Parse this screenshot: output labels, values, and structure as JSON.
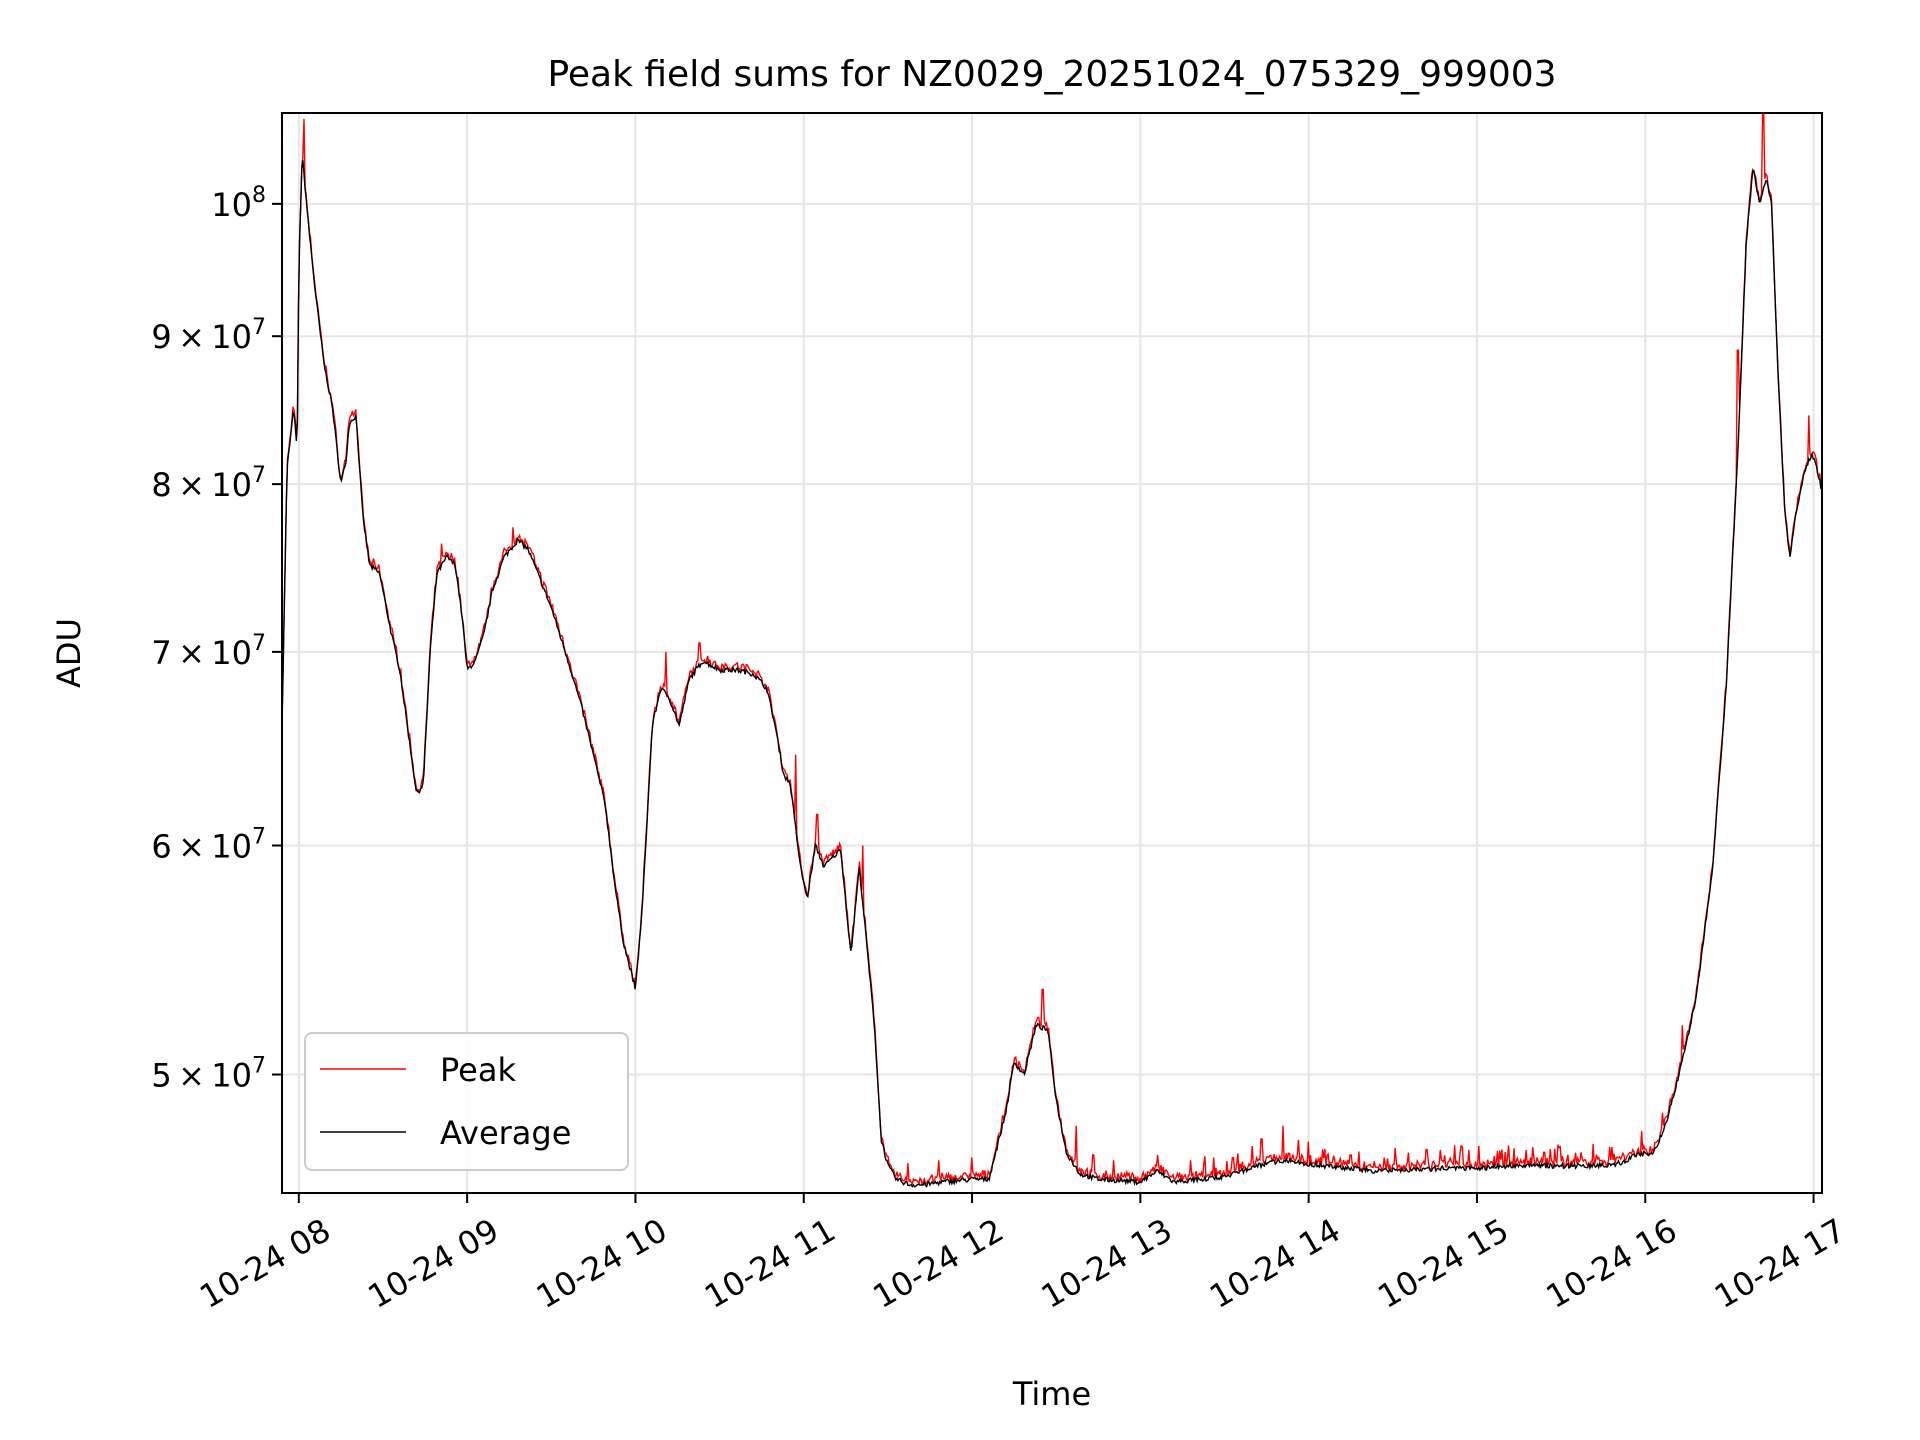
{
  "chart_data": {
    "type": "line",
    "title": "Peak field sums for NZ0029_20251024_075329_999003",
    "xlabel": "Time",
    "ylabel": "ADU",
    "yscale": "log",
    "xlim": [
      7.9,
      17.05
    ],
    "ylim": [
      45500000,
      107500000
    ],
    "grid": true,
    "legend_position": "lower-left",
    "x_ticks": [
      {
        "value": 8,
        "label": "10-24 08"
      },
      {
        "value": 9,
        "label": "10-24 09"
      },
      {
        "value": 10,
        "label": "10-24 10"
      },
      {
        "value": 11,
        "label": "10-24 11"
      },
      {
        "value": 12,
        "label": "10-24 12"
      },
      {
        "value": 13,
        "label": "10-24 13"
      },
      {
        "value": 14,
        "label": "10-24 14"
      },
      {
        "value": 15,
        "label": "10-24 15"
      },
      {
        "value": 16,
        "label": "10-24 16"
      },
      {
        "value": 17,
        "label": "10-24 17"
      }
    ],
    "y_ticks": [
      {
        "value": 50000000,
        "coef": "5",
        "exp": "7"
      },
      {
        "value": 60000000,
        "coef": "6",
        "exp": "7"
      },
      {
        "value": 70000000,
        "coef": "7",
        "exp": "7"
      },
      {
        "value": 80000000,
        "coef": "8",
        "exp": "7"
      },
      {
        "value": 90000000,
        "coef": "9",
        "exp": "7"
      },
      {
        "value": 100000000,
        "coef": "10",
        "exp": "8"
      }
    ],
    "y_times_symbol": "×",
    "series": [
      {
        "name": "Peak",
        "color": "#ff0000"
      },
      {
        "name": "Average",
        "color": "#000000"
      }
    ],
    "average_keypoints": [
      [
        7.9,
        66000000
      ],
      [
        7.93,
        81000000
      ],
      [
        7.97,
        85000000
      ],
      [
        7.99,
        82000000
      ],
      [
        8.0,
        95000000
      ],
      [
        8.02,
        104000000
      ],
      [
        8.06,
        98000000
      ],
      [
        8.1,
        93000000
      ],
      [
        8.15,
        88000000
      ],
      [
        8.2,
        85000000
      ],
      [
        8.25,
        80000000
      ],
      [
        8.28,
        81500000
      ],
      [
        8.3,
        84000000
      ],
      [
        8.34,
        84500000
      ],
      [
        8.38,
        78000000
      ],
      [
        8.42,
        75000000
      ],
      [
        8.48,
        74500000
      ],
      [
        8.55,
        71000000
      ],
      [
        8.6,
        69000000
      ],
      [
        8.66,
        65000000
      ],
      [
        8.7,
        62500000
      ],
      [
        8.74,
        63000000
      ],
      [
        8.78,
        70000000
      ],
      [
        8.82,
        74500000
      ],
      [
        8.88,
        75500000
      ],
      [
        8.93,
        75000000
      ],
      [
        8.97,
        72000000
      ],
      [
        9.0,
        69000000
      ],
      [
        9.05,
        69500000
      ],
      [
        9.1,
        71000000
      ],
      [
        9.15,
        73500000
      ],
      [
        9.22,
        75500000
      ],
      [
        9.3,
        76500000
      ],
      [
        9.36,
        76000000
      ],
      [
        9.42,
        74500000
      ],
      [
        9.5,
        72500000
      ],
      [
        9.55,
        71000000
      ],
      [
        9.6,
        69500000
      ],
      [
        9.68,
        67000000
      ],
      [
        9.75,
        64500000
      ],
      [
        9.82,
        62000000
      ],
      [
        9.88,
        58000000
      ],
      [
        9.93,
        55500000
      ],
      [
        10.0,
        53500000
      ],
      [
        10.04,
        57000000
      ],
      [
        10.1,
        66000000
      ],
      [
        10.15,
        68000000
      ],
      [
        10.2,
        67500000
      ],
      [
        10.26,
        66000000
      ],
      [
        10.32,
        68500000
      ],
      [
        10.4,
        69500000
      ],
      [
        10.5,
        69000000
      ],
      [
        10.6,
        69000000
      ],
      [
        10.7,
        68800000
      ],
      [
        10.78,
        68000000
      ],
      [
        10.83,
        66000000
      ],
      [
        10.88,
        63500000
      ],
      [
        10.92,
        63000000
      ],
      [
        10.98,
        59000000
      ],
      [
        11.02,
        57500000
      ],
      [
        11.07,
        60000000
      ],
      [
        11.12,
        59000000
      ],
      [
        11.18,
        59500000
      ],
      [
        11.22,
        59800000
      ],
      [
        11.28,
        55000000
      ],
      [
        11.33,
        59000000
      ],
      [
        11.38,
        55000000
      ],
      [
        11.42,
        52000000
      ],
      [
        11.46,
        47500000
      ],
      [
        11.5,
        46500000
      ],
      [
        11.55,
        46000000
      ],
      [
        11.63,
        45800000
      ],
      [
        11.72,
        45800000
      ],
      [
        11.82,
        45900000
      ],
      [
        11.92,
        45950000
      ],
      [
        12.0,
        46000000
      ],
      [
        12.1,
        46000000
      ],
      [
        12.2,
        48500000
      ],
      [
        12.25,
        50500000
      ],
      [
        12.31,
        50000000
      ],
      [
        12.38,
        52000000
      ],
      [
        12.45,
        51800000
      ],
      [
        12.5,
        49000000
      ],
      [
        12.56,
        47000000
      ],
      [
        12.64,
        46200000
      ],
      [
        12.75,
        46000000
      ],
      [
        12.9,
        45950000
      ],
      [
        13.0,
        45900000
      ],
      [
        13.1,
        46300000
      ],
      [
        13.2,
        45900000
      ],
      [
        13.35,
        46000000
      ],
      [
        13.5,
        46100000
      ],
      [
        13.65,
        46400000
      ],
      [
        13.75,
        46600000
      ],
      [
        13.85,
        46700000
      ],
      [
        13.95,
        46600000
      ],
      [
        14.1,
        46500000
      ],
      [
        14.25,
        46400000
      ],
      [
        14.4,
        46300000
      ],
      [
        14.6,
        46350000
      ],
      [
        14.8,
        46400000
      ],
      [
        15.0,
        46400000
      ],
      [
        15.2,
        46500000
      ],
      [
        15.4,
        46500000
      ],
      [
        15.6,
        46500000
      ],
      [
        15.75,
        46500000
      ],
      [
        15.85,
        46600000
      ],
      [
        15.95,
        46900000
      ],
      [
        16.05,
        47000000
      ],
      [
        16.12,
        48000000
      ],
      [
        16.2,
        50000000
      ],
      [
        16.3,
        53000000
      ],
      [
        16.4,
        59000000
      ],
      [
        16.48,
        68000000
      ],
      [
        16.55,
        82000000
      ],
      [
        16.6,
        97000000
      ],
      [
        16.64,
        103000000
      ],
      [
        16.68,
        100000000
      ],
      [
        16.72,
        102000000
      ],
      [
        16.75,
        100000000
      ],
      [
        16.79,
        87000000
      ],
      [
        16.83,
        78000000
      ],
      [
        16.86,
        75500000
      ],
      [
        16.9,
        78500000
      ],
      [
        16.95,
        81000000
      ],
      [
        16.99,
        82000000
      ],
      [
        17.02,
        81000000
      ],
      [
        17.05,
        79500000
      ]
    ],
    "peak_spikes": [
      [
        8.03,
        107000000
      ],
      [
        8.32,
        84800000
      ],
      [
        8.85,
        76300000
      ],
      [
        9.27,
        77300000
      ],
      [
        10.18,
        70000000
      ],
      [
        10.38,
        70500000
      ],
      [
        10.95,
        64500000
      ],
      [
        11.08,
        61500000
      ],
      [
        11.35,
        60000000
      ],
      [
        11.43,
        49500000
      ],
      [
        11.62,
        46600000
      ],
      [
        11.8,
        46700000
      ],
      [
        12.0,
        46800000
      ],
      [
        12.17,
        47000000
      ],
      [
        12.42,
        53500000
      ],
      [
        12.62,
        48000000
      ],
      [
        12.72,
        46900000
      ],
      [
        12.84,
        46700000
      ],
      [
        13.1,
        46900000
      ],
      [
        13.3,
        46700000
      ],
      [
        13.55,
        46800000
      ],
      [
        13.72,
        47500000
      ],
      [
        13.85,
        48000000
      ],
      [
        14.0,
        47400000
      ],
      [
        14.25,
        46900000
      ],
      [
        14.45,
        46800000
      ],
      [
        14.7,
        47100000
      ],
      [
        14.9,
        47000000
      ],
      [
        15.15,
        47100000
      ],
      [
        15.4,
        47000000
      ],
      [
        15.62,
        47000000
      ],
      [
        15.8,
        47200000
      ],
      [
        15.98,
        47800000
      ],
      [
        16.1,
        48500000
      ],
      [
        16.22,
        52000000
      ],
      [
        16.55,
        89000000
      ],
      [
        16.7,
        107500000
      ],
      [
        16.97,
        84500000
      ]
    ],
    "legend": {
      "peak": "Peak",
      "average": "Average"
    }
  }
}
